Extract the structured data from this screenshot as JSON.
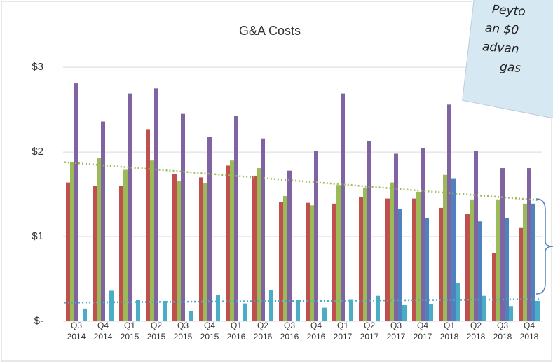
{
  "chart_data": {
    "type": "bar",
    "title": "G&A Costs",
    "categories": [
      [
        "Q3",
        "2014"
      ],
      [
        "Q4",
        "2014"
      ],
      [
        "Q1",
        "2015"
      ],
      [
        "Q2",
        "2015"
      ],
      [
        "Q3",
        "2015"
      ],
      [
        "Q4",
        "2015"
      ],
      [
        "Q1",
        "2016"
      ],
      [
        "Q2",
        "2016"
      ],
      [
        "Q3",
        "2016"
      ],
      [
        "Q4",
        "2016"
      ],
      [
        "Q1",
        "2017"
      ],
      [
        "Q2",
        "2017"
      ],
      [
        "Q3",
        "2017"
      ],
      [
        "Q4",
        "2017"
      ],
      [
        "Q1",
        "2018"
      ],
      [
        "Q2",
        "2018"
      ],
      [
        "Q3",
        "2018"
      ],
      [
        "Q4",
        "2018"
      ]
    ],
    "series": [
      {
        "color": "#c0504d",
        "values": [
          1.64,
          1.6,
          1.6,
          2.27,
          1.74,
          1.7,
          1.84,
          1.72,
          1.41,
          1.4,
          1.39,
          1.47,
          1.45,
          1.45,
          1.34,
          1.27,
          0.81,
          1.11
        ]
      },
      {
        "color": "#9bbb59",
        "values": [
          1.88,
          1.93,
          1.79,
          1.9,
          1.66,
          1.63,
          1.9,
          1.81,
          1.48,
          1.37,
          1.61,
          1.58,
          1.64,
          1.53,
          1.73,
          1.44,
          1.44,
          1.39
        ]
      },
      {
        "color": "#8064a2",
        "values": [
          2.81,
          2.36,
          2.69,
          2.75,
          2.45,
          2.18,
          2.43,
          2.16,
          1.78,
          2.01,
          2.69,
          2.13,
          1.98,
          2.05,
          2.56,
          2.01,
          1.81,
          1.81
        ]
      },
      {
        "color": "#4f81bd",
        "values": [
          null,
          null,
          null,
          null,
          null,
          null,
          null,
          null,
          null,
          null,
          null,
          null,
          1.33,
          1.22,
          1.69,
          1.18,
          1.22,
          1.39
        ]
      },
      {
        "color": "#4bacc6",
        "values": [
          0.15,
          0.36,
          0.25,
          0.24,
          0.12,
          0.31,
          0.21,
          0.37,
          0.25,
          0.16,
          0.26,
          0.3,
          0.19,
          0.2,
          0.45,
          0.3,
          0.18,
          0.24
        ]
      }
    ],
    "trendlines": [
      {
        "color": "#9bbb59",
        "values": [
          1.88,
          1.43
        ]
      },
      {
        "color": "#4bacc6",
        "values": [
          0.22,
          0.26
        ]
      }
    ],
    "ylim": [
      0,
      3.1
    ],
    "yticks": [
      {
        "value": 0,
        "label": "$-"
      },
      {
        "value": 1,
        "label": "$1"
      },
      {
        "value": 2,
        "label": "$2"
      },
      {
        "value": 3,
        "label": "$3"
      }
    ],
    "note": [
      "Peyto",
      "an $0",
      "advan",
      "gas"
    ]
  }
}
